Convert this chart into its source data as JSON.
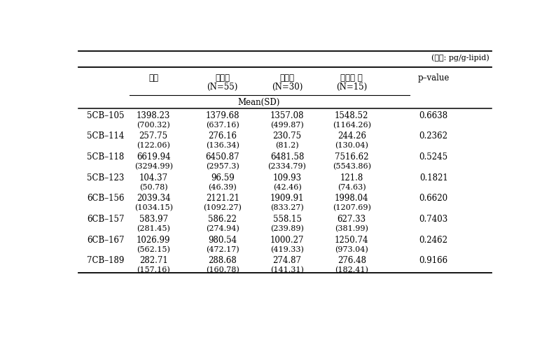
{
  "unit_label": "(단위: pg/g-lipid)",
  "col_headers_line1": [
    "전체",
    "대조군",
    "당뇨병",
    "갑상선 암",
    "p–value"
  ],
  "col_headers_line2": [
    "",
    "(N=55)",
    "(N=30)",
    "(N=15)",
    ""
  ],
  "mean_sd_label": "Mean(SD)",
  "rows": [
    {
      "label": "5CB–105",
      "mean": [
        "1398.23",
        "1379.68",
        "1357.08",
        "1548.52"
      ],
      "sd": [
        "(700.32)",
        "(637.16)",
        "(499.87)",
        "(1164.26)"
      ],
      "pvalue": "0.6638"
    },
    {
      "label": "5CB–114",
      "mean": [
        "257.75",
        "276.16",
        "230.75",
        "244.26"
      ],
      "sd": [
        "(122.06)",
        "(136.34)",
        "(81.2)",
        "(130.04)"
      ],
      "pvalue": "0.2362"
    },
    {
      "label": "5CB–118",
      "mean": [
        "6619.94",
        "6450.87",
        "6481.58",
        "7516.62"
      ],
      "sd": [
        "(3294.99)",
        "(2957.3)",
        "(2334.79)",
        "(5543.86)"
      ],
      "pvalue": "0.5245"
    },
    {
      "label": "5CB–123",
      "mean": [
        "104.37",
        "96.59",
        "109.93",
        "121.8"
      ],
      "sd": [
        "(50.78)",
        "(46.39)",
        "(42.46)",
        "(74.63)"
      ],
      "pvalue": "0.1821"
    },
    {
      "label": "6CB–156",
      "mean": [
        "2039.34",
        "2121.21",
        "1909.91",
        "1998.04"
      ],
      "sd": [
        "(1034.15)",
        "(1092.27)",
        "(833.27)",
        "(1207.69)"
      ],
      "pvalue": "0.6620"
    },
    {
      "label": "6CB–157",
      "mean": [
        "583.97",
        "586.22",
        "558.15",
        "627.33"
      ],
      "sd": [
        "(281.45)",
        "(274.94)",
        "(239.89)",
        "(381.99)"
      ],
      "pvalue": "0.7403"
    },
    {
      "label": "6CB–167",
      "mean": [
        "1026.99",
        "980.54",
        "1000.27",
        "1250.74"
      ],
      "sd": [
        "(562.15)",
        "(472.17)",
        "(419.33)",
        "(973.04)"
      ],
      "pvalue": "0.2462"
    },
    {
      "label": "7CB–189",
      "mean": [
        "282.71",
        "288.68",
        "274.87",
        "276.48"
      ],
      "sd": [
        "(157.16)",
        "(160.78)",
        "(141.31)",
        "(182.41)"
      ],
      "pvalue": "0.9166"
    }
  ],
  "figsize": [
    7.94,
    5.1
  ],
  "dpi": 100,
  "font_size": 8.5,
  "header_font_size": 8.5,
  "small_font_size": 8.0
}
